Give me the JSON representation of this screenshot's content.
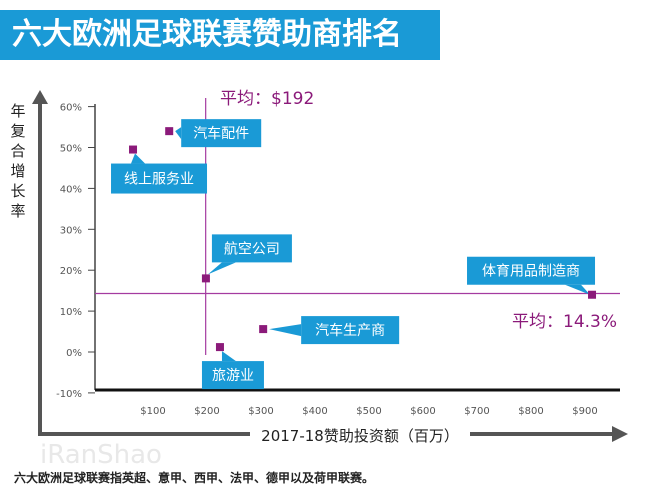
{
  "title": "六大欧洲足球联赛赞助商排名",
  "footnote": "六大欧洲足球联赛指英超、意甲、西甲、法甲、德甲以及荷甲联赛。",
  "watermark": "iRanShao",
  "colors": {
    "banner": "#1a9ad6",
    "point": "#8b1a7a",
    "avg_line": "#a43ba0",
    "callout": "#1a9ad6"
  },
  "chart_data": {
    "type": "scatter",
    "xlabel": "2017-18赞助投资额（百万）",
    "ylabel": "年复合增长率",
    "xlim": [
      0,
      950
    ],
    "ylim": [
      -10,
      60
    ],
    "x_ticks": [
      "$100",
      "$200",
      "$300",
      "$400",
      "$500",
      "$600",
      "$700",
      "$800",
      "$900"
    ],
    "y_ticks": [
      "60%",
      "50%",
      "40%",
      "30%",
      "20%",
      "10%",
      "0%",
      "-10%"
    ],
    "points": [
      {
        "label": "线上服务业",
        "x": 63,
        "y": 49.5
      },
      {
        "label": "汽车配件",
        "x": 130,
        "y": 54
      },
      {
        "label": "航空公司",
        "x": 198,
        "y": 18
      },
      {
        "label": "旅游业",
        "x": 224,
        "y": 1.2
      },
      {
        "label": "汽车生产商",
        "x": 304,
        "y": 5.6
      },
      {
        "label": "体育用品制造商",
        "x": 913,
        "y": 14
      }
    ],
    "avg_x": {
      "value": 192,
      "label": "平均：$192"
    },
    "avg_y": {
      "value": 14.3,
      "label": "平均：14.3%"
    }
  }
}
